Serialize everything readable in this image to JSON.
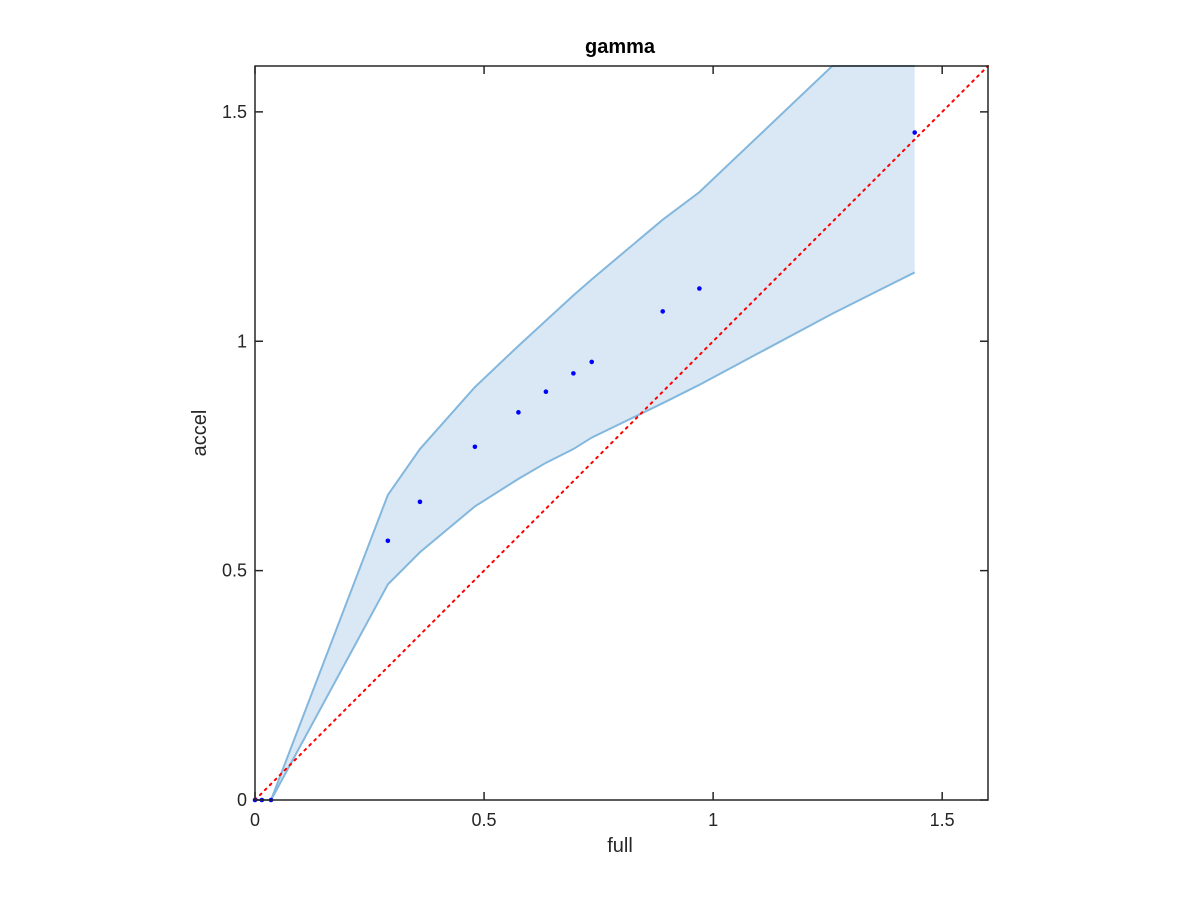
{
  "chart_data": {
    "type": "scatter",
    "title": "gamma",
    "xlabel": "full",
    "ylabel": "accel",
    "xlim": [
      0,
      1.6
    ],
    "ylim": [
      0,
      1.6
    ],
    "grid": false,
    "x_ticks": [
      {
        "value": 0,
        "label": "0"
      },
      {
        "value": 0.5,
        "label": "0.5"
      },
      {
        "value": 1,
        "label": "1"
      },
      {
        "value": 1.5,
        "label": "1.5"
      }
    ],
    "y_ticks": [
      {
        "value": 0,
        "label": "0"
      },
      {
        "value": 0.5,
        "label": "0.5"
      },
      {
        "value": 1,
        "label": "1"
      },
      {
        "value": 1.5,
        "label": "1.5"
      }
    ],
    "points": {
      "color": "#0000ff",
      "x": [
        0.0,
        0.015,
        0.035,
        0.29,
        0.36,
        0.48,
        0.575,
        0.635,
        0.695,
        0.735,
        0.89,
        0.97,
        1.44
      ],
      "y": [
        0.0,
        0.0,
        0.0,
        0.565,
        0.65,
        0.77,
        0.845,
        0.89,
        0.93,
        0.955,
        1.065,
        1.115,
        1.455
      ]
    },
    "band": {
      "fill": "#d9e8f4",
      "edge": "#84b7dd",
      "x": [
        0.0,
        0.015,
        0.035,
        0.29,
        0.36,
        0.48,
        0.575,
        0.635,
        0.695,
        0.735,
        0.89,
        0.97,
        1.26,
        1.44
      ],
      "upper": [
        0.0,
        0.0,
        0.0,
        0.665,
        0.765,
        0.9,
        0.99,
        1.045,
        1.1,
        1.135,
        1.265,
        1.325,
        1.6,
        1.6
      ],
      "lower": [
        0.0,
        0.0,
        0.0,
        0.47,
        0.54,
        0.64,
        0.7,
        0.735,
        0.765,
        0.79,
        0.865,
        0.905,
        1.06,
        1.15
      ]
    },
    "reference_line": {
      "color": "#ff0000",
      "style": "dotted",
      "x": [
        0,
        1.6
      ],
      "y": [
        0,
        1.6
      ]
    }
  }
}
